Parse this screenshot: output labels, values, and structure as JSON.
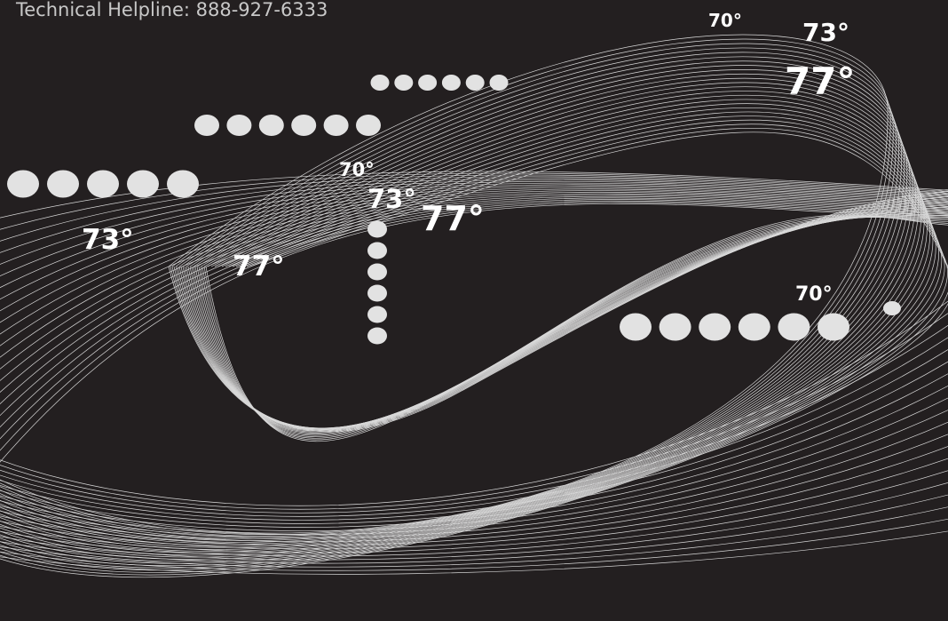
{
  "header": {
    "helpline": "Technical Helpline:  888-927-6333"
  },
  "labels": [
    "70°",
    "73°",
    "77°",
    "70°",
    "73°",
    "77°",
    "73°",
    "77°",
    "70°"
  ]
}
